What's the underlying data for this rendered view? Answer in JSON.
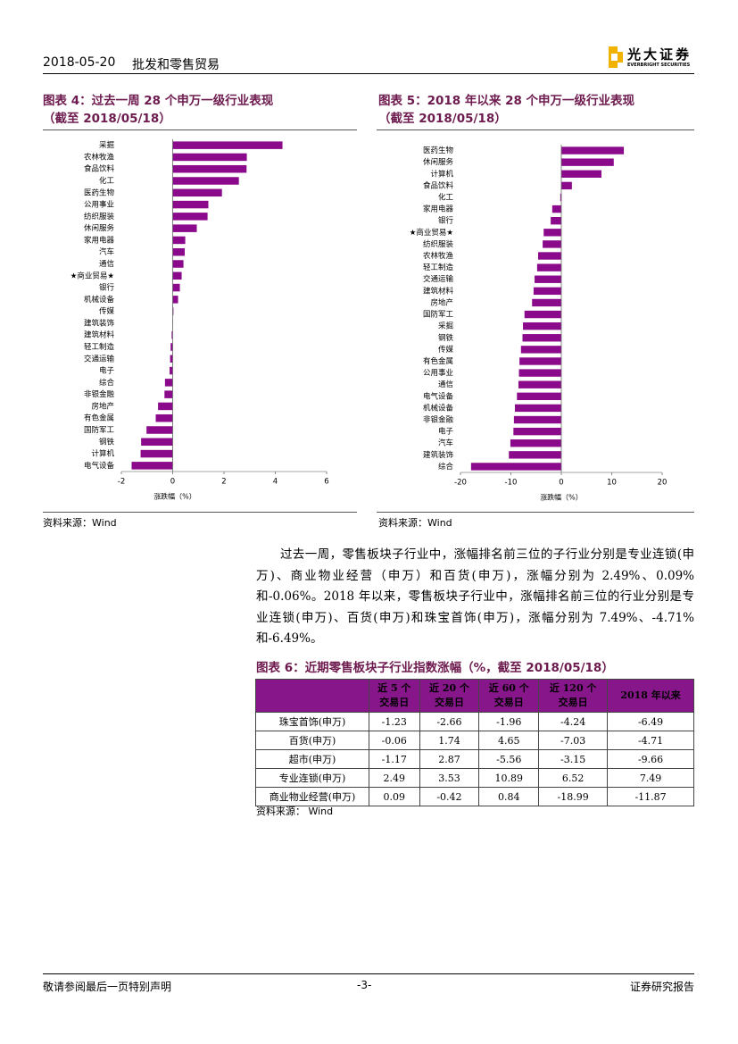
{
  "header": {
    "date": "2018-05-20",
    "section": "批发和零售贸易",
    "logo_cn": "光大证券",
    "logo_en": "EVERBRIGHT SECURITIES"
  },
  "chart_data": [
    {
      "type": "bar",
      "orientation": "horizontal",
      "title": "图表 4：过去一周 28 个申万一级行业表现",
      "subtitle": "（截至 2018/05/18）",
      "categories": [
        "采掘",
        "农林牧渔",
        "食品饮料",
        "化工",
        "医药生物",
        "公用事业",
        "纺织服装",
        "休闲服务",
        "家用电器",
        "汽车",
        "通信",
        "★商业贸易★",
        "银行",
        "机械设备",
        "传媒",
        "建筑装饰",
        "建筑材料",
        "轻工制造",
        "交通运输",
        "电子",
        "综合",
        "非银金融",
        "房地产",
        "有色金属",
        "国防军工",
        "钢铁",
        "计算机",
        "电气设备"
      ],
      "values": [
        4.28,
        2.89,
        2.88,
        2.58,
        1.92,
        1.39,
        1.36,
        0.94,
        0.49,
        0.47,
        0.42,
        0.35,
        0.28,
        0.21,
        0.03,
        0.01,
        -0.04,
        -0.08,
        -0.1,
        -0.12,
        -0.3,
        -0.32,
        -0.57,
        -0.66,
        -1.02,
        -1.23,
        -1.25,
        -1.6
      ],
      "color": "#8b0a8b",
      "xlim": [
        -2,
        6
      ],
      "xticks": [
        -2,
        0,
        2,
        4,
        6
      ],
      "xlabel": "涨跌幅（%）",
      "source": "资料来源：Wind"
    },
    {
      "type": "bar",
      "orientation": "horizontal",
      "title": "图表 5：2018 年以来 28 个申万一级行业表现",
      "subtitle": "（截至 2018/05/18）",
      "categories": [
        "医药生物",
        "休闲服务",
        "计算机",
        "食品饮料",
        "化工",
        "家用电器",
        "银行",
        "★商业贸易★",
        "纺织服装",
        "农林牧渔",
        "轻工制造",
        "交通运输",
        "建筑材料",
        "房地产",
        "国防军工",
        "采掘",
        "钢铁",
        "传媒",
        "有色金属",
        "公用事业",
        "通信",
        "电气设备",
        "机械设备",
        "非银金融",
        "电子",
        "汽车",
        "建筑装饰",
        "综合"
      ],
      "values": [
        12.4,
        10.4,
        7.96,
        2.1,
        -0.2,
        -1.8,
        -2.1,
        -3.5,
        -3.7,
        -4.6,
        -4.8,
        -5.3,
        -5.5,
        -5.8,
        -7.3,
        -7.6,
        -7.7,
        -8.0,
        -8.3,
        -8.4,
        -8.5,
        -8.8,
        -9.2,
        -9.4,
        -9.5,
        -10.1,
        -10.4,
        -17.9
      ],
      "color": "#8b0a8b",
      "xlim": [
        -20,
        20
      ],
      "xticks": [
        -20,
        -10,
        0,
        10,
        20
      ],
      "xlabel": "涨跌幅（%）",
      "source": "资料来源：Wind"
    }
  ],
  "body": {
    "paragraph": "过去一周，零售板块子行业中，涨幅排名前三位的子行业分别是专业连锁(申万)、商业物业经营（申万）和百货(申万)，涨幅分别为 2.49%、0.09%和-0.06%。2018 年以来，零售板块子行业中，涨幅排名前三位的行业分别是专业连锁(申万)、百货(申万)和珠宝首饰(申万)，涨幅分别为 7.49%、-4.71%和-6.49%。"
  },
  "table": {
    "title": "图表 6：近期零售板块子行业指数涨幅（%，截至 2018/05/18）",
    "columns": [
      [
        "近 5 个",
        "交易日"
      ],
      [
        "近 20 个",
        "交易日"
      ],
      [
        "近 60 个",
        "交易日"
      ],
      [
        "近 120 个",
        "交易日"
      ],
      [
        "2018 年以来"
      ]
    ],
    "rows": [
      [
        "珠宝首饰(申万)",
        "-1.23",
        "-2.66",
        "-1.96",
        "-4.24",
        "-6.49"
      ],
      [
        "百货(申万)",
        "-0.06",
        "1.74",
        "4.65",
        "-7.03",
        "-4.71"
      ],
      [
        "超市(申万)",
        "-1.17",
        "2.87",
        "-5.56",
        "-3.15",
        "-9.66"
      ],
      [
        "专业连锁(申万)",
        "2.49",
        "3.53",
        "10.89",
        "6.52",
        "7.49"
      ],
      [
        "商业物业经营(申万)",
        "0.09",
        "-0.42",
        "0.84",
        "-18.99",
        "-11.87"
      ]
    ],
    "source": "资料来源：  Wind"
  },
  "footer": {
    "left": "敬请参阅最后一页特别声明",
    "center": "-3-",
    "right": "证券研究报告"
  }
}
